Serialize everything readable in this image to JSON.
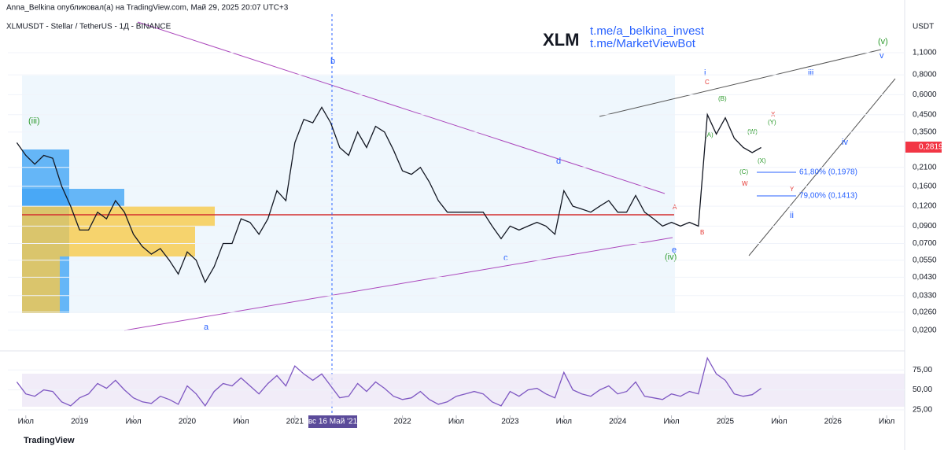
{
  "header": {
    "publisher": "Anna_Belkina опубликовал(а) на TradingView.com, Май 29, 2025 20:07 UTC+3",
    "symbol": "XLMUSDT - Stellar / TetherUS - 1Д - BINANCE",
    "ticker": "XLM",
    "link1": "t.me/a_belkina_invest",
    "link2": "t.me/MarketViewBot",
    "currency": "USDT",
    "brand": "TradingView"
  },
  "price_label": "0,2819",
  "crosshair_label": "вс 16 Май '21",
  "fib": [
    "61,80% (0,1978)",
    "79,00% (0,1413)"
  ],
  "annotations": [
    "b",
    "a",
    "c",
    "d",
    "e",
    "(iv)",
    "(iii)",
    "i",
    "ii",
    "iii",
    "iv",
    "v",
    "(v)",
    "A",
    "B",
    "C",
    "W",
    "X",
    "Y",
    "(A)",
    "(B)",
    "(C)",
    "(W)",
    "(X)",
    "(Y)"
  ],
  "chart_data": [
    {
      "type": "line",
      "log_scale": true,
      "color": "#131722",
      "x": [
        "2018-06",
        "2018-07",
        "2018-08",
        "2018-09",
        "2018-10",
        "2018-11",
        "2018-12",
        "2019-01",
        "2019-02",
        "2019-03",
        "2019-04",
        "2019-05",
        "2019-06",
        "2019-07",
        "2019-08",
        "2019-09",
        "2019-10",
        "2019-11",
        "2019-12",
        "2020-01",
        "2020-02",
        "2020-03",
        "2020-04",
        "2020-05",
        "2020-06",
        "2020-07",
        "2020-08",
        "2020-09",
        "2020-10",
        "2020-11",
        "2020-12",
        "2021-01",
        "2021-02",
        "2021-03",
        "2021-04",
        "2021-05",
        "2021-06",
        "2021-07",
        "2021-08",
        "2021-09",
        "2021-10",
        "2021-11",
        "2021-12",
        "2022-01",
        "2022-02",
        "2022-03",
        "2022-04",
        "2022-05",
        "2022-06",
        "2022-07",
        "2022-08",
        "2022-09",
        "2022-10",
        "2022-11",
        "2022-12",
        "2023-01",
        "2023-02",
        "2023-03",
        "2023-04",
        "2023-05",
        "2023-06",
        "2023-07",
        "2023-08",
        "2023-09",
        "2023-10",
        "2023-11",
        "2023-12",
        "2024-01",
        "2024-02",
        "2024-03",
        "2024-04",
        "2024-05",
        "2024-06",
        "2024-07",
        "2024-08",
        "2024-09",
        "2024-10",
        "2024-11",
        "2024-12",
        "2025-01",
        "2025-02",
        "2025-03",
        "2025-04",
        "2025-05"
      ],
      "values": [
        0.3,
        0.25,
        0.22,
        0.25,
        0.24,
        0.16,
        0.12,
        0.085,
        0.085,
        0.11,
        0.1,
        0.13,
        0.11,
        0.08,
        0.067,
        0.06,
        0.065,
        0.055,
        0.045,
        0.062,
        0.055,
        0.04,
        0.05,
        0.07,
        0.07,
        0.1,
        0.095,
        0.08,
        0.1,
        0.15,
        0.13,
        0.3,
        0.42,
        0.4,
        0.5,
        0.4,
        0.28,
        0.25,
        0.35,
        0.28,
        0.38,
        0.35,
        0.27,
        0.2,
        0.19,
        0.21,
        0.17,
        0.13,
        0.11,
        0.11,
        0.11,
        0.11,
        0.11,
        0.09,
        0.075,
        0.09,
        0.085,
        0.09,
        0.095,
        0.09,
        0.08,
        0.15,
        0.12,
        0.115,
        0.11,
        0.12,
        0.13,
        0.11,
        0.11,
        0.14,
        0.11,
        0.1,
        0.09,
        0.095,
        0.09,
        0.095,
        0.09,
        0.45,
        0.34,
        0.43,
        0.32,
        0.28,
        0.26,
        0.28
      ],
      "xlim": [
        "2018-05",
        "2026-09"
      ],
      "xticks": [
        {
          "value": "2018-07",
          "label": "Июл"
        },
        {
          "value": "2019-01",
          "label": "2019"
        },
        {
          "value": "2019-07",
          "label": "Июл"
        },
        {
          "value": "2020-01",
          "label": "2020"
        },
        {
          "value": "2020-07",
          "label": "Июл"
        },
        {
          "value": "2021-01",
          "label": "2021"
        },
        {
          "value": "2022-01",
          "label": "2022"
        },
        {
          "value": "2022-07",
          "label": "Июл"
        },
        {
          "value": "2023-01",
          "label": "2023"
        },
        {
          "value": "2023-07",
          "label": "Июл"
        },
        {
          "value": "2024-01",
          "label": "2024"
        },
        {
          "value": "2024-07",
          "label": "Июл"
        },
        {
          "value": "2025-01",
          "label": "2025"
        },
        {
          "value": "2025-07",
          "label": "Июл"
        },
        {
          "value": "2026-01",
          "label": "2026"
        },
        {
          "value": "2026-07",
          "label": "Июл"
        }
      ],
      "ylim": [
        0.0159,
        1.92
      ],
      "yticks": [
        {
          "value": 1.1,
          "label": "1,1000"
        },
        {
          "value": 0.8,
          "label": "0,8000"
        },
        {
          "value": 0.6,
          "label": "0,6000"
        },
        {
          "value": 0.45,
          "label": "0,4500"
        },
        {
          "value": 0.35,
          "label": "0,3500"
        },
        {
          "value": 0.21,
          "label": "0,2100"
        },
        {
          "value": 0.16,
          "label": "0,1600"
        },
        {
          "value": 0.12,
          "label": "0,1200"
        },
        {
          "value": 0.09,
          "label": "0,0900"
        },
        {
          "value": 0.07,
          "label": "0,0700"
        },
        {
          "value": 0.055,
          "label": "0,0550"
        },
        {
          "value": 0.043,
          "label": "0,0430"
        },
        {
          "value": 0.033,
          "label": "0,0330"
        },
        {
          "value": 0.026,
          "label": "0,0260"
        },
        {
          "value": 0.02,
          "label": "0,0200"
        }
      ]
    },
    {
      "type": "line",
      "color": "#7e57c2",
      "values": [
        60,
        45,
        42,
        50,
        48,
        35,
        30,
        40,
        45,
        58,
        52,
        62,
        50,
        40,
        35,
        33,
        42,
        38,
        32,
        55,
        45,
        30,
        48,
        58,
        55,
        65,
        55,
        45,
        58,
        68,
        55,
        80,
        70,
        62,
        70,
        55,
        40,
        42,
        58,
        48,
        60,
        52,
        42,
        38,
        40,
        48,
        38,
        32,
        35,
        42,
        45,
        48,
        45,
        35,
        30,
        48,
        42,
        50,
        52,
        45,
        40,
        72,
        50,
        45,
        42,
        50,
        55,
        45,
        48,
        60,
        42,
        40,
        38,
        45,
        42,
        48,
        45,
        90,
        70,
        62,
        45,
        42,
        44,
        52
      ],
      "ylim": [
        21,
        95
      ],
      "yticks": [
        {
          "value": 75,
          "label": "75,00"
        },
        {
          "value": 50,
          "label": "50,00"
        },
        {
          "value": 25,
          "label": "25,00"
        }
      ]
    }
  ]
}
